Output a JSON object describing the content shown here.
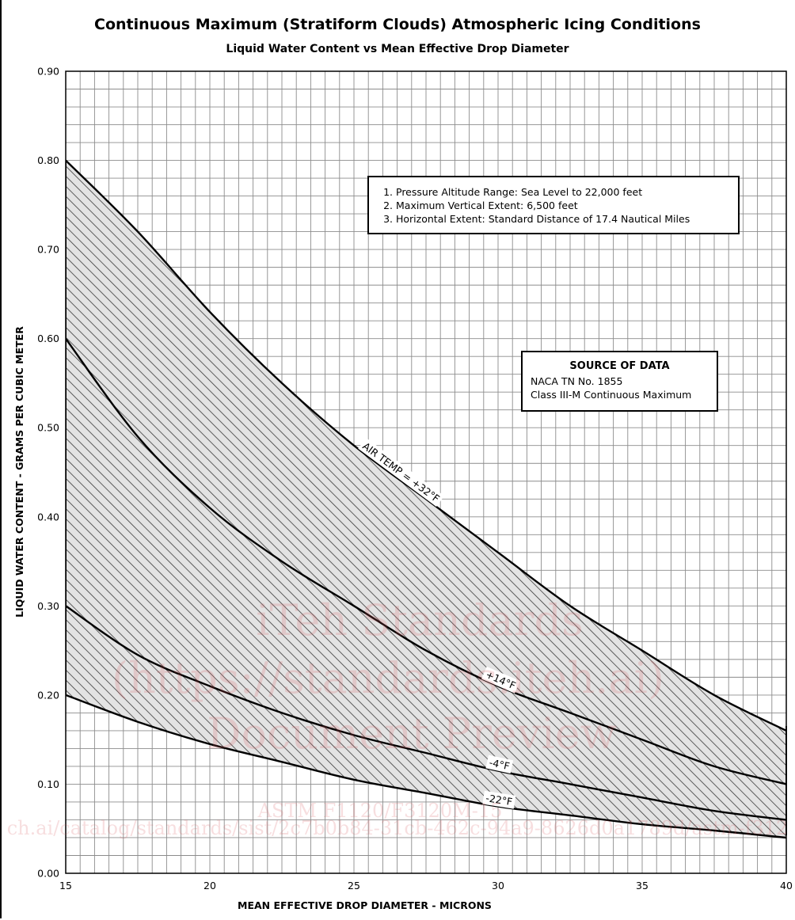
{
  "chart_data": {
    "type": "area",
    "title": "Continuous Maximum (Stratiform Clouds) Atmospheric Icing Conditions",
    "subtitle": "Liquid Water Content vs Mean Effective Drop Diameter",
    "xlabel": "MEAN EFFECTIVE DROP DIAMETER - MICRONS",
    "ylabel": "LIQUID WATER CONTENT - GRAMS PER CUBIC METER",
    "xlim": [
      15,
      40
    ],
    "ylim": [
      0,
      0.9
    ],
    "x_ticks": [
      "15",
      "20",
      "25",
      "30",
      "35",
      "40"
    ],
    "y_ticks": [
      "0.00",
      "0.10",
      "0.20",
      "0.30",
      "0.40",
      "0.50",
      "0.60",
      "0.70",
      "0.80",
      "0.90"
    ],
    "grid": true,
    "shaded_region": "hatched envelope between the +32°F curve and the -22°F curve",
    "series": [
      {
        "name": "AIR TEMP = +32°F",
        "x": [
          15,
          17.5,
          20,
          22.5,
          25,
          27.5,
          30,
          32.5,
          35,
          37.5,
          40
        ],
        "values": [
          0.8,
          0.72,
          0.63,
          0.55,
          0.48,
          0.42,
          0.36,
          0.3,
          0.25,
          0.2,
          0.16
        ]
      },
      {
        "name": "+14°F",
        "x": [
          15,
          17.5,
          20,
          22.5,
          25,
          27.5,
          30,
          32.5,
          35,
          37.5,
          40
        ],
        "values": [
          0.6,
          0.49,
          0.41,
          0.35,
          0.3,
          0.25,
          0.21,
          0.18,
          0.15,
          0.12,
          0.1
        ]
      },
      {
        "name": "-4°F",
        "x": [
          15,
          17.5,
          20,
          22.5,
          25,
          27.5,
          30,
          32.5,
          35,
          37.5,
          40
        ],
        "values": [
          0.3,
          0.245,
          0.21,
          0.18,
          0.155,
          0.135,
          0.115,
          0.1,
          0.085,
          0.07,
          0.06
        ]
      },
      {
        "name": "-22°F",
        "x": [
          15,
          17.5,
          20,
          22.5,
          25,
          27.5,
          30,
          32.5,
          35,
          37.5,
          40
        ],
        "values": [
          0.2,
          0.17,
          0.145,
          0.125,
          0.105,
          0.09,
          0.075,
          0.065,
          0.055,
          0.048,
          0.04
        ]
      }
    ],
    "curve_labels": [
      "AIR TEMP = +32°F",
      "+14°F",
      "-4°F",
      "-22°F"
    ]
  },
  "notes": [
    "Pressure Altitude Range: Sea Level to 22,000 feet",
    "Maximum Vertical Extent: 6,500 feet",
    "Horizontal Extent: Standard Distance of 17.4 Nautical Miles"
  ],
  "source": {
    "title": "SOURCE OF DATA",
    "lines": [
      "NACA TN No. 1855",
      "Class III-M Continuous Maximum"
    ]
  },
  "watermark": {
    "line1": "iTeh Standards",
    "line2": "(https://standards.iteh.ai)",
    "line3": "Document Preview",
    "line4": "ASTM F1120/F3120M-15",
    "line5": "ch.ai/catalog/standards/sist/2c7b0b84-31cb-462c-94a9-8626d0a1789d/astm-f312"
  },
  "colors": {
    "grid": "#8c8c8c",
    "curve": "#000000",
    "fill": "#e3e3e3",
    "hatch": "#3a3a3a",
    "watermark": "#d85860"
  }
}
